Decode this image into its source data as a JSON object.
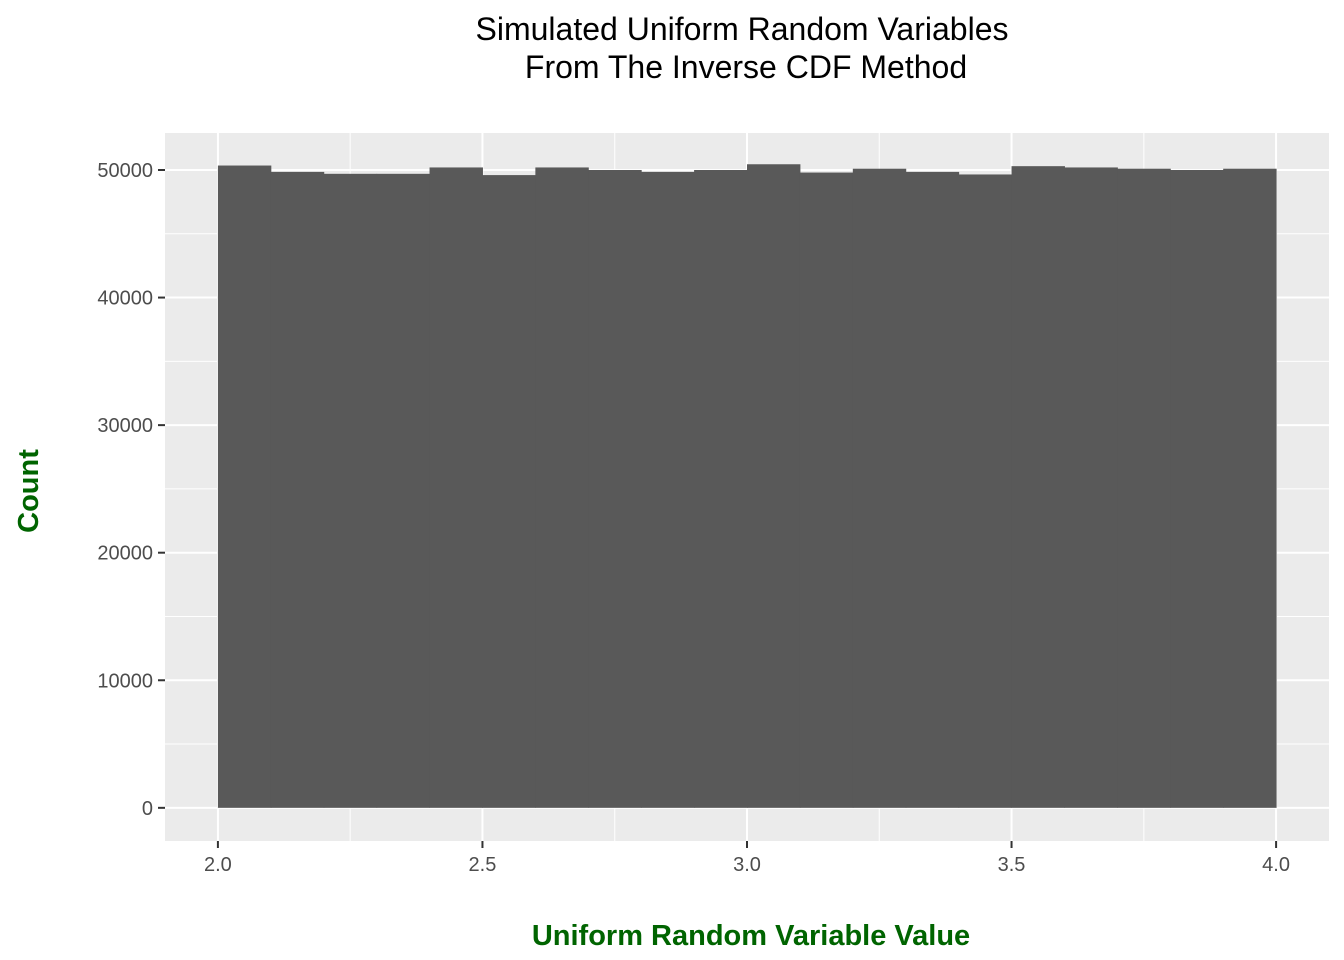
{
  "chart_data": {
    "type": "bar",
    "title": "Simulated Uniform Random Variables",
    "subtitle": "From The Inverse CDF Method",
    "xlabel": "Uniform Random Variable Value",
    "ylabel": "Count",
    "xlim": [
      1.9,
      4.1
    ],
    "ylim": [
      -2600,
      52900
    ],
    "x_ticks": [
      2.0,
      2.5,
      3.0,
      3.5,
      4.0
    ],
    "x_tick_labels": [
      "2.0",
      "2.5",
      "3.0",
      "3.5",
      "4.0"
    ],
    "y_ticks": [
      0,
      10000,
      20000,
      30000,
      40000,
      50000
    ],
    "y_tick_labels": [
      "0",
      "10000",
      "20000",
      "30000",
      "40000",
      "50000"
    ],
    "grid": true,
    "bin_width": 0.1,
    "bins": [
      {
        "start": 2.0,
        "end": 2.1,
        "count": 50350
      },
      {
        "start": 2.1,
        "end": 2.2,
        "count": 49850
      },
      {
        "start": 2.2,
        "end": 2.3,
        "count": 49700
      },
      {
        "start": 2.3,
        "end": 2.4,
        "count": 49700
      },
      {
        "start": 2.4,
        "end": 2.5,
        "count": 50200
      },
      {
        "start": 2.5,
        "end": 2.6,
        "count": 49600
      },
      {
        "start": 2.6,
        "end": 2.7,
        "count": 50200
      },
      {
        "start": 2.7,
        "end": 2.8,
        "count": 50000
      },
      {
        "start": 2.8,
        "end": 2.9,
        "count": 49850
      },
      {
        "start": 2.9,
        "end": 3.0,
        "count": 50000
      },
      {
        "start": 3.0,
        "end": 3.1,
        "count": 50450
      },
      {
        "start": 3.1,
        "end": 3.2,
        "count": 49800
      },
      {
        "start": 3.2,
        "end": 3.3,
        "count": 50100
      },
      {
        "start": 3.3,
        "end": 3.4,
        "count": 49850
      },
      {
        "start": 3.4,
        "end": 3.5,
        "count": 49650
      },
      {
        "start": 3.5,
        "end": 3.6,
        "count": 50300
      },
      {
        "start": 3.6,
        "end": 3.7,
        "count": 50200
      },
      {
        "start": 3.7,
        "end": 3.8,
        "count": 50100
      },
      {
        "start": 3.8,
        "end": 3.9,
        "count": 50000
      },
      {
        "start": 3.9,
        "end": 4.0,
        "count": 50100
      }
    ],
    "colors": {
      "bar_fill": "#595959",
      "panel_background": "#ebebeb",
      "grid_line": "#ffffff",
      "axis_title": "#006400",
      "tick_label": "#4d4d4d",
      "tick_mark": "#333333",
      "title": "#000000"
    }
  }
}
